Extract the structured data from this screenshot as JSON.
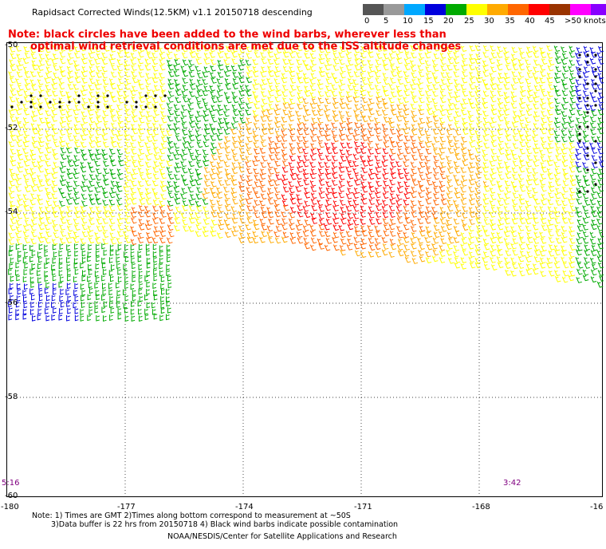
{
  "header": {
    "title": "Rapidsact Corrected Winds(12.5KM) v1.1 20150718 descending",
    "note_line1": "Note: black circles have been added to the wind barbs, wherever less than",
    "note_line2": "optimal wind retrieval conditions are met due to the ISS altitude changes"
  },
  "colorbar": {
    "labels": [
      "0",
      "5",
      "10",
      "15",
      "20",
      "25",
      "30",
      "35",
      "40",
      "45",
      ">50 knots"
    ],
    "colors": [
      "#555555",
      "#999999",
      "#00a8ff",
      "#0000dd",
      "#00aa00",
      "#ffff00",
      "#ffaa00",
      "#ff6600",
      "#ff0000",
      "#cc0033",
      "#993300",
      "#ff00ff",
      "#8800ff"
    ]
  },
  "axes": {
    "lat_labels": [
      "-50",
      "-52",
      "-54",
      "-56",
      "-58",
      "-60"
    ],
    "lon_labels": [
      "-180",
      "-177",
      "-174",
      "-171",
      "-168",
      "-16"
    ]
  },
  "times": [
    "5:16",
    "3:42"
  ],
  "footer": {
    "line1": "Note: 1) Times are GMT 2)Times along bottom correspond to measurement at ~50S",
    "line2": "3)Data buffer is 22 hrs from 20150718 4) Black wind barbs indicate possible contamination",
    "line3": "NOAA/NESDIS/Center for Satellite Applications and Research"
  }
}
